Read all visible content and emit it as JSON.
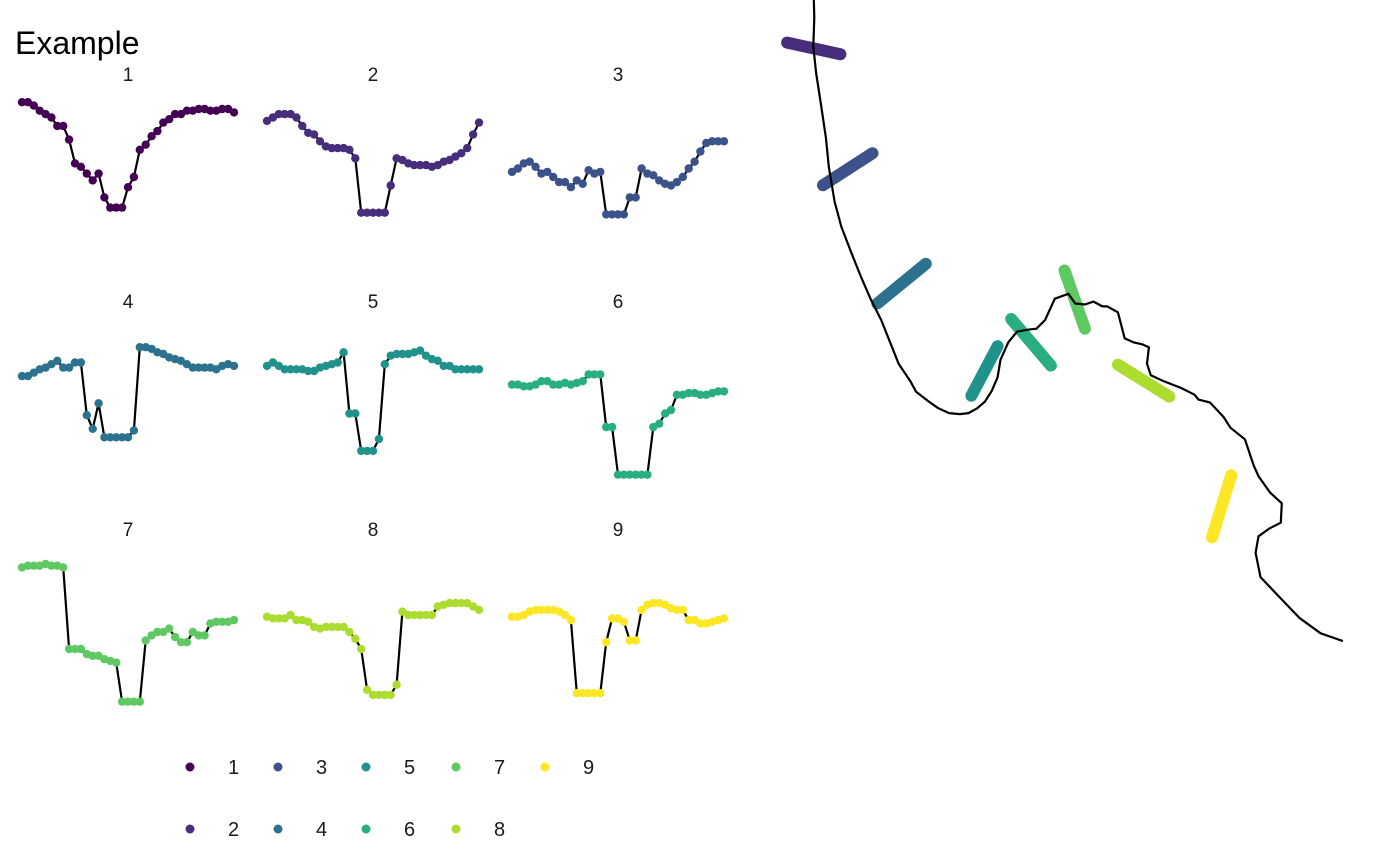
{
  "title": "Example",
  "colors": {
    "1": "#440154",
    "2": "#472d7b",
    "3": "#3b528b",
    "4": "#2c728e",
    "5": "#21918c",
    "6": "#28ae80",
    "7": "#5ec962",
    "8": "#addc30",
    "9": "#fde725"
  },
  "chart_data": [
    {
      "type": "line",
      "facets": [
        {
          "label": "1",
          "x": [
            1,
            2,
            3,
            4,
            5,
            6,
            7,
            8,
            9,
            10,
            11,
            12,
            13,
            14,
            15,
            16,
            17,
            18,
            19,
            20,
            21,
            22,
            23,
            24,
            25,
            26,
            27,
            28,
            29,
            30,
            31,
            32,
            33,
            34,
            35,
            36,
            37
          ],
          "y": [
            0.94,
            0.94,
            0.92,
            0.89,
            0.87,
            0.85,
            0.8,
            0.8,
            0.72,
            0.58,
            0.56,
            0.52,
            0.48,
            0.52,
            0.38,
            0.32,
            0.32,
            0.32,
            0.44,
            0.5,
            0.66,
            0.69,
            0.74,
            0.77,
            0.82,
            0.84,
            0.87,
            0.87,
            0.89,
            0.89,
            0.9,
            0.9,
            0.89,
            0.89,
            0.9,
            0.9,
            0.88
          ]
        },
        {
          "label": "2",
          "x": [
            1,
            2,
            3,
            4,
            5,
            6,
            7,
            8,
            9,
            10,
            11,
            12,
            13,
            14,
            15,
            16,
            17,
            18,
            19,
            20,
            21,
            22,
            23,
            24,
            25,
            26,
            27,
            28,
            29,
            30,
            31,
            32,
            33,
            34,
            35,
            36,
            37
          ],
          "y": [
            0.83,
            0.85,
            0.87,
            0.87,
            0.87,
            0.85,
            0.8,
            0.76,
            0.75,
            0.71,
            0.68,
            0.67,
            0.67,
            0.67,
            0.66,
            0.61,
            0.29,
            0.29,
            0.29,
            0.29,
            0.29,
            0.45,
            0.61,
            0.6,
            0.58,
            0.57,
            0.57,
            0.57,
            0.56,
            0.57,
            0.59,
            0.6,
            0.62,
            0.64,
            0.67,
            0.75,
            0.82
          ]
        },
        {
          "label": "3",
          "x": [
            1,
            2,
            3,
            4,
            5,
            6,
            7,
            8,
            9,
            10,
            11,
            12,
            13,
            14,
            15,
            16,
            17,
            18,
            19,
            20,
            21,
            22,
            23,
            24,
            25,
            26,
            27,
            28,
            29,
            30,
            31,
            32,
            33,
            34,
            35,
            36,
            37
          ],
          "y": [
            0.53,
            0.55,
            0.58,
            0.59,
            0.56,
            0.52,
            0.53,
            0.5,
            0.47,
            0.47,
            0.44,
            0.48,
            0.46,
            0.54,
            0.52,
            0.53,
            0.28,
            0.28,
            0.28,
            0.28,
            0.38,
            0.38,
            0.55,
            0.52,
            0.51,
            0.48,
            0.46,
            0.45,
            0.47,
            0.5,
            0.55,
            0.59,
            0.65,
            0.7,
            0.71,
            0.71,
            0.71
          ]
        },
        {
          "label": "4",
          "x": [
            1,
            2,
            3,
            4,
            5,
            6,
            7,
            8,
            9,
            10,
            11,
            12,
            13,
            14,
            15,
            16,
            17,
            18,
            19,
            20,
            21,
            22,
            23,
            24,
            25,
            26,
            27,
            28,
            29,
            30,
            31,
            32,
            33,
            34,
            35,
            36,
            37
          ],
          "y": [
            0.67,
            0.67,
            0.69,
            0.71,
            0.72,
            0.74,
            0.76,
            0.72,
            0.72,
            0.75,
            0.75,
            0.44,
            0.36,
            0.51,
            0.31,
            0.31,
            0.31,
            0.31,
            0.31,
            0.35,
            0.84,
            0.84,
            0.83,
            0.81,
            0.8,
            0.78,
            0.77,
            0.76,
            0.74,
            0.72,
            0.72,
            0.72,
            0.72,
            0.71,
            0.73,
            0.74,
            0.73
          ]
        },
        {
          "label": "5",
          "x": [
            1,
            2,
            3,
            4,
            5,
            6,
            7,
            8,
            9,
            10,
            11,
            12,
            13,
            14,
            15,
            16,
            17,
            18,
            19,
            20,
            21,
            22,
            23,
            24,
            25,
            26,
            27,
            28,
            29,
            30,
            31,
            32,
            33,
            34,
            35,
            36,
            37
          ],
          "y": [
            0.73,
            0.75,
            0.73,
            0.71,
            0.71,
            0.71,
            0.71,
            0.7,
            0.7,
            0.72,
            0.73,
            0.74,
            0.75,
            0.81,
            0.45,
            0.45,
            0.23,
            0.23,
            0.23,
            0.3,
            0.74,
            0.79,
            0.8,
            0.8,
            0.8,
            0.81,
            0.82,
            0.79,
            0.77,
            0.76,
            0.73,
            0.73,
            0.71,
            0.71,
            0.71,
            0.71,
            0.71
          ]
        },
        {
          "label": "6",
          "x": [
            1,
            2,
            3,
            4,
            5,
            6,
            7,
            8,
            9,
            10,
            11,
            12,
            13,
            14,
            15,
            16,
            17,
            18,
            19,
            20,
            21,
            22,
            23,
            24,
            25,
            26,
            27,
            28,
            29,
            30,
            31,
            32,
            33,
            34,
            35,
            36,
            37
          ],
          "y": [
            0.62,
            0.62,
            0.61,
            0.61,
            0.62,
            0.64,
            0.64,
            0.62,
            0.62,
            0.63,
            0.62,
            0.63,
            0.64,
            0.68,
            0.68,
            0.68,
            0.37,
            0.37,
            0.09,
            0.09,
            0.09,
            0.09,
            0.09,
            0.09,
            0.37,
            0.39,
            0.45,
            0.47,
            0.56,
            0.56,
            0.57,
            0.57,
            0.56,
            0.56,
            0.57,
            0.58,
            0.58
          ]
        },
        {
          "label": "7",
          "x": [
            1,
            2,
            3,
            4,
            5,
            6,
            7,
            8,
            9,
            10,
            11,
            12,
            13,
            14,
            15,
            16,
            17,
            18,
            19,
            20,
            21,
            22,
            23,
            24,
            25,
            26,
            27,
            28,
            29,
            30,
            31,
            32,
            33,
            34,
            35,
            36,
            37
          ],
          "y": [
            0.88,
            0.89,
            0.89,
            0.89,
            0.9,
            0.89,
            0.89,
            0.88,
            0.4,
            0.4,
            0.4,
            0.37,
            0.36,
            0.36,
            0.34,
            0.33,
            0.32,
            0.09,
            0.09,
            0.09,
            0.09,
            0.45,
            0.48,
            0.5,
            0.5,
            0.52,
            0.47,
            0.44,
            0.44,
            0.5,
            0.48,
            0.48,
            0.55,
            0.56,
            0.56,
            0.56,
            0.57
          ]
        },
        {
          "label": "8",
          "x": [
            1,
            2,
            3,
            4,
            5,
            6,
            7,
            8,
            9,
            10,
            11,
            12,
            13,
            14,
            15,
            16,
            17,
            18,
            19,
            20,
            21,
            22,
            23,
            24,
            25,
            26,
            27,
            28,
            29,
            30,
            31,
            32,
            33,
            34,
            35,
            36,
            37
          ],
          "y": [
            0.59,
            0.58,
            0.58,
            0.58,
            0.6,
            0.57,
            0.57,
            0.56,
            0.53,
            0.52,
            0.53,
            0.53,
            0.53,
            0.53,
            0.5,
            0.46,
            0.4,
            0.16,
            0.13,
            0.13,
            0.13,
            0.13,
            0.19,
            0.62,
            0.6,
            0.6,
            0.6,
            0.6,
            0.6,
            0.65,
            0.66,
            0.67,
            0.67,
            0.67,
            0.67,
            0.65,
            0.63
          ]
        },
        {
          "label": "9",
          "x": [
            1,
            2,
            3,
            4,
            5,
            6,
            7,
            8,
            9,
            10,
            11,
            12,
            13,
            14,
            15,
            16,
            17,
            18,
            19,
            20,
            21,
            22,
            23,
            24,
            25,
            26,
            27,
            28,
            29,
            30,
            31,
            32,
            33,
            34,
            35,
            36,
            37
          ],
          "y": [
            0.59,
            0.59,
            0.6,
            0.62,
            0.63,
            0.63,
            0.63,
            0.63,
            0.62,
            0.6,
            0.57,
            0.14,
            0.14,
            0.14,
            0.14,
            0.14,
            0.44,
            0.58,
            0.58,
            0.56,
            0.45,
            0.45,
            0.63,
            0.66,
            0.67,
            0.67,
            0.66,
            0.64,
            0.63,
            0.63,
            0.57,
            0.57,
            0.55,
            0.55,
            0.56,
            0.57,
            0.58
          ]
        }
      ]
    },
    {
      "type": "line",
      "path": {
        "x": [
          0.1,
          1.3,
          2.4,
          2.5,
          2.4,
          2.7,
          3.2,
          3.7,
          4.0,
          4.6,
          5.3,
          6.3,
          7.3,
          8.3,
          9.4,
          10.4,
          11.2,
          12.4,
          13.0,
          14.3,
          15.3,
          16.4,
          17.5,
          18.4,
          19.3,
          20.1,
          20.8,
          21.4,
          21.7,
          22.5,
          23.4,
          24.5,
          25.4,
          26.3,
          27.3,
          28.7,
          29.4,
          30.4,
          31.3,
          32.2,
          32.7,
          33.8,
          34.5,
          35.4,
          36.3,
          37.0,
          36.8,
          37.2,
          38.5,
          40.3,
          41.7,
          42.1,
          43.3,
          44.7,
          45.4,
          46.9,
          47.8,
          48.3,
          49.5,
          50.7,
          50.6,
          49.4,
          48.3,
          48.0,
          48.5,
          50.4,
          52.5,
          54.7,
          57.0
        ],
        "y": [
          96.2,
          94.2,
          91.5,
          87.9,
          84.9,
          82.1,
          78.9,
          75.5,
          72.5,
          68.9,
          66.3,
          63.7,
          61.2,
          58.9,
          56.7,
          54.2,
          52.2,
          50.4,
          49.3,
          48.3,
          47.6,
          47.1,
          47.0,
          47.1,
          47.6,
          48.3,
          49.4,
          50.8,
          52.6,
          54.4,
          55.5,
          55.7,
          55.8,
          56.7,
          58.9,
          59.4,
          58.4,
          58.3,
          58.6,
          58.1,
          58.1,
          57.5,
          54.8,
          54.4,
          54.2,
          53.9,
          52.2,
          51.0,
          50.4,
          49.7,
          49.0,
          48.5,
          48.2,
          46.7,
          45.6,
          44.4,
          41.7,
          40.6,
          38.9,
          37.8,
          35.8,
          35.2,
          34.4,
          32.7,
          30.2,
          28.2,
          26.0,
          24.4,
          23.6
        ]
      },
      "segments": [
        {
          "group": "1",
          "from": [
            -0.7,
            92.5
          ],
          "to": [
            4.0,
            97.2
          ]
        },
        {
          "group": "2",
          "from": [
            -0.3,
            85.3
          ],
          "to": [
            5.2,
            84.1
          ]
        },
        {
          "group": "3",
          "from": [
            3.4,
            70.6
          ],
          "to": [
            8.5,
            73.9
          ]
        },
        {
          "group": "4",
          "from": [
            9.0,
            58.4
          ],
          "to": [
            14.0,
            62.5
          ]
        },
        {
          "group": "5",
          "from": [
            18.7,
            48.9
          ],
          "to": [
            21.4,
            54.0
          ]
        },
        {
          "group": "6",
          "from": [
            22.8,
            56.8
          ],
          "to": [
            26.9,
            52.0
          ]
        },
        {
          "group": "7",
          "from": [
            28.3,
            61.8
          ],
          "to": [
            30.4,
            55.8
          ]
        },
        {
          "group": "8",
          "from": [
            33.8,
            52.1
          ],
          "to": [
            39.1,
            48.8
          ]
        },
        {
          "group": "9",
          "from": [
            43.5,
            34.3
          ],
          "to": [
            45.5,
            40.7
          ]
        }
      ]
    }
  ],
  "legend": {
    "position": "bottom",
    "items": [
      "1",
      "2",
      "3",
      "4",
      "5",
      "6",
      "7",
      "8",
      "9"
    ]
  }
}
